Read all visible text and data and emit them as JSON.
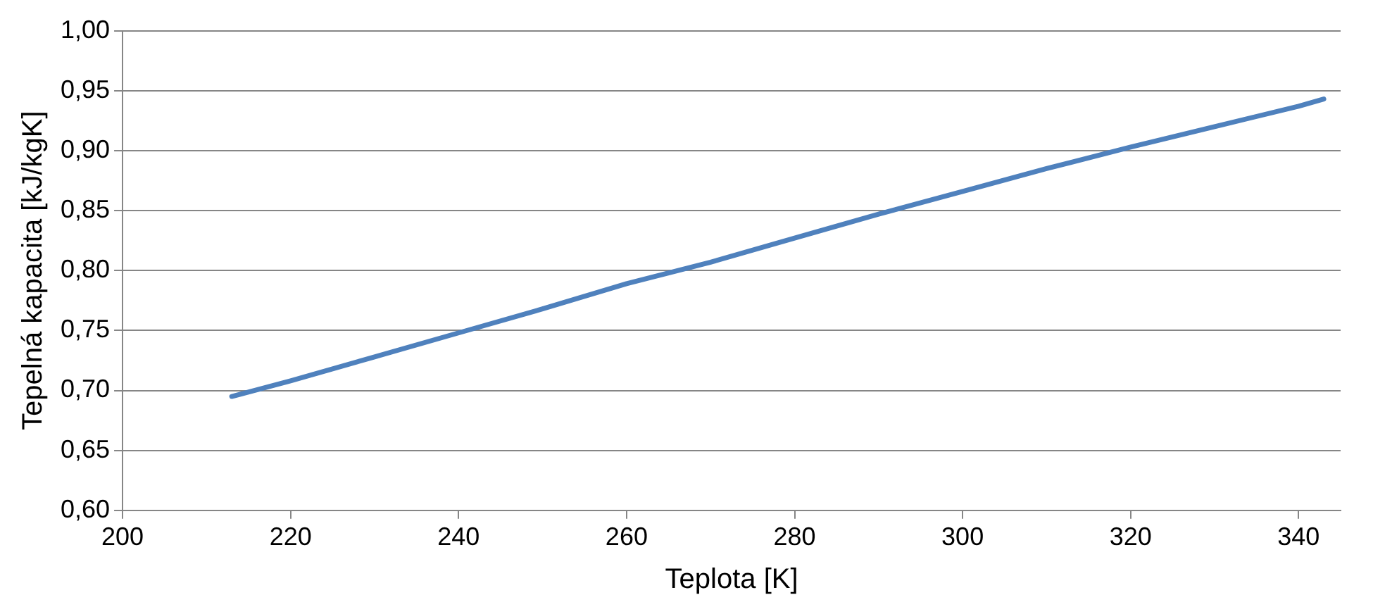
{
  "chart_data": {
    "type": "line",
    "xlabel": "Teplota [K]",
    "ylabel": "Tepelná kapacita [kJ/kgK]",
    "x": [
      213,
      220,
      230,
      240,
      250,
      260,
      270,
      280,
      290,
      300,
      310,
      320,
      330,
      340,
      343
    ],
    "series": [
      {
        "color": "#4f81bd",
        "values": [
          0.695,
          0.708,
          0.728,
          0.748,
          0.768,
          0.789,
          0.807,
          0.827,
          0.847,
          0.866,
          0.885,
          0.903,
          0.92,
          0.937,
          0.943
        ]
      }
    ],
    "xlim": [
      200,
      345
    ],
    "xticks": [
      200,
      220,
      240,
      260,
      280,
      300,
      320,
      340
    ],
    "ylim": [
      0.6,
      1.0
    ],
    "yticks": [
      {
        "value": 0.6,
        "label": "0,60"
      },
      {
        "value": 0.65,
        "label": "0,65"
      },
      {
        "value": 0.7,
        "label": "0,70"
      },
      {
        "value": 0.75,
        "label": "0,75"
      },
      {
        "value": 0.8,
        "label": "0,80"
      },
      {
        "value": 0.85,
        "label": "0,85"
      },
      {
        "value": 0.9,
        "label": "0,90"
      },
      {
        "value": 0.95,
        "label": "0,95"
      },
      {
        "value": 1.0,
        "label": "1,00"
      }
    ],
    "grid": "y",
    "legend": false,
    "marker": "none",
    "line_style": "solid"
  }
}
